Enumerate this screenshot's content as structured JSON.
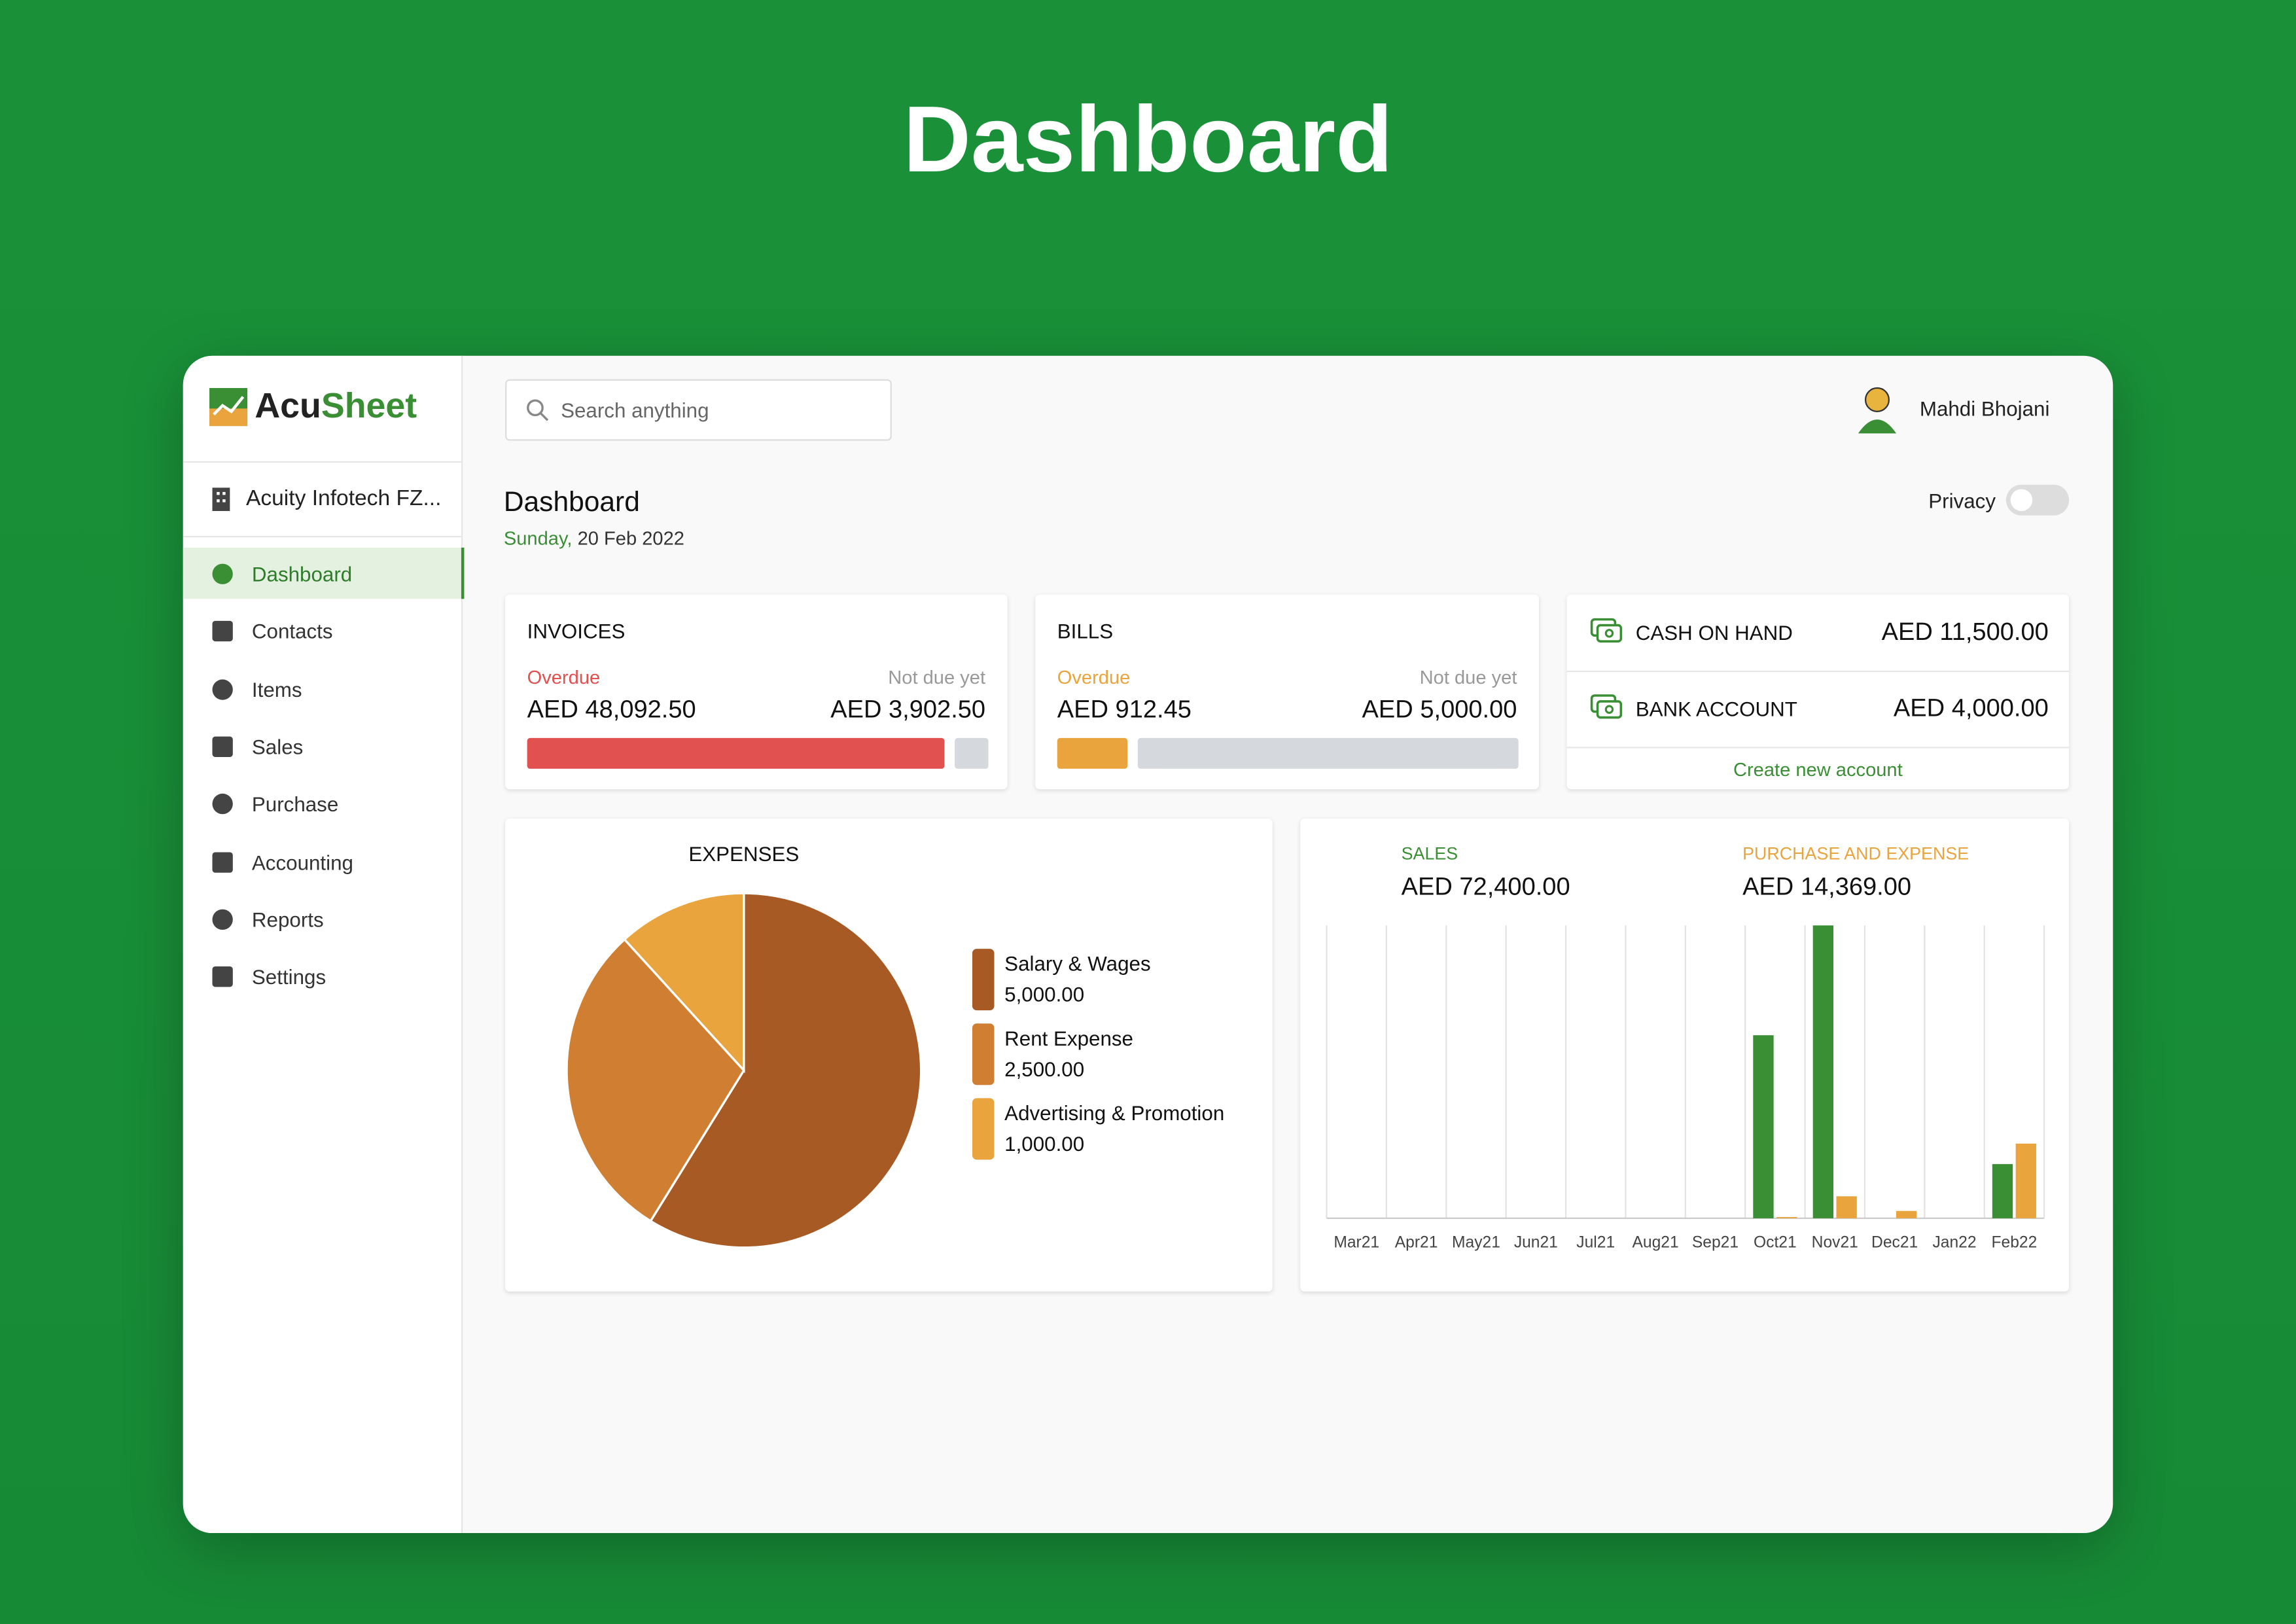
{
  "header": {
    "title": "Dashboard"
  },
  "sidebar": {
    "logo": {
      "part1": "Acu",
      "part2": "Sheet"
    },
    "company": "Acuity Infotech FZ...",
    "nav": [
      "Dashboard",
      "Contacts",
      "Items",
      "Sales",
      "Purchase",
      "Accounting",
      "Reports",
      "Settings"
    ]
  },
  "topbar": {
    "search_placeholder": "Search anything",
    "user": "Mahdi Bhojani"
  },
  "page": {
    "title": "Dashboard",
    "day": "Sunday,",
    "date": "20 Feb 2022",
    "privacy": "Privacy"
  },
  "invoices": {
    "title": "INVOICES",
    "overdue_label": "Overdue",
    "not_due_label": "Not due yet",
    "overdue": {
      "value": 48092.5,
      "label": "AED 48,092.50"
    },
    "not_due": {
      "value": 3902.5,
      "label": "AED 3,902.50"
    }
  },
  "bills": {
    "title": "BILLS",
    "overdue_label": "Overdue",
    "not_due_label": "Not due yet",
    "overdue": {
      "value": 912.45,
      "label": "AED 912.45"
    },
    "not_due": {
      "value": 5000,
      "label": "AED 5,000.00"
    }
  },
  "accounts": {
    "rows": [
      {
        "name": "CASH ON HAND",
        "amount": "AED 11,500.00"
      },
      {
        "name": "BANK ACCOUNT",
        "amount": "AED 4,000.00"
      }
    ],
    "create": "Create new account"
  },
  "expenses_chart": {
    "type": "pie",
    "title": "EXPENSES",
    "categories": [
      "Salary & Wages",
      "Rent Expense",
      "Advertising & Promotion"
    ],
    "values": [
      5000,
      2500,
      1000
    ],
    "value_labels": [
      "5,000.00",
      "2,500.00",
      "1,000.00"
    ],
    "colors": [
      "#a85a24",
      "#d07f32",
      "#e9a43d"
    ]
  },
  "sales_chart": {
    "type": "bar",
    "categories": [
      "Mar21",
      "Apr21",
      "May21",
      "Jun21",
      "Jul21",
      "Aug21",
      "Sep21",
      "Oct21",
      "Nov21",
      "Dec21",
      "Jan22",
      "Feb22"
    ],
    "series": [
      {
        "name": "SALES",
        "total": "AED 72,400.00",
        "color": "#3a8f35",
        "values": [
          0,
          0,
          0,
          0,
          0,
          0,
          0,
          25000,
          40000,
          0,
          0,
          7400
        ]
      },
      {
        "name": "PURCHASE AND EXPENSE",
        "total": "AED 14,369.00",
        "color": "#e9a43d",
        "values": [
          0,
          0,
          0,
          0,
          0,
          0,
          0,
          169,
          3000,
          1000,
          0,
          10200
        ]
      }
    ],
    "ylim": [
      0,
      40000
    ],
    "grid": true
  }
}
